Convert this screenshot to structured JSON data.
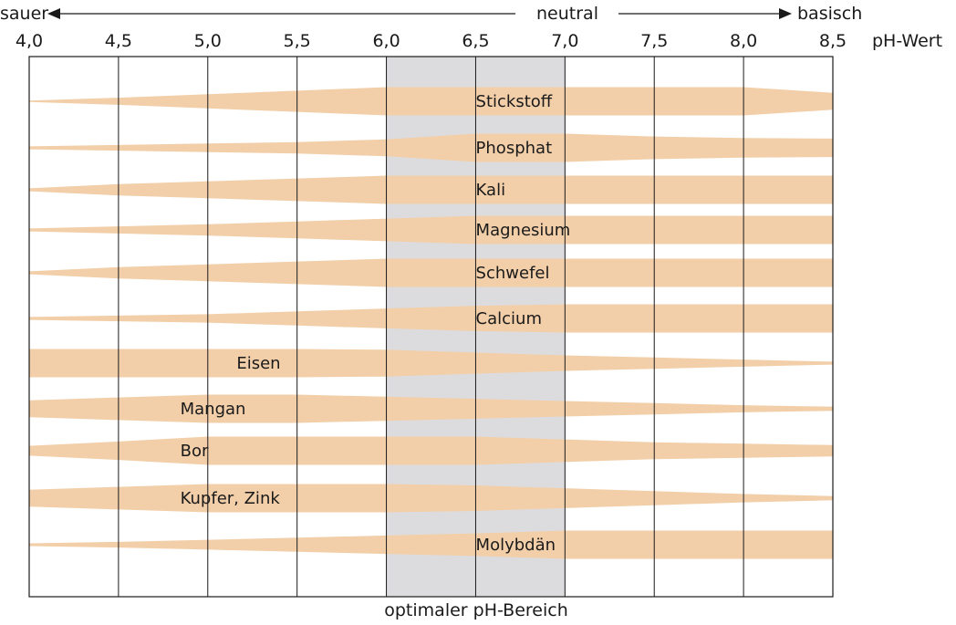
{
  "scale": {
    "left_label": "sauer",
    "center_label": "neutral",
    "right_label": "basisch",
    "unit_label": "pH-Wert",
    "ticks": [
      "4,0",
      "4,5",
      "5,0",
      "5,5",
      "6,0",
      "6,5",
      "7,0",
      "7,5",
      "8,0",
      "8,5"
    ]
  },
  "optimal_label": "optimaler pH-Bereich",
  "colors": {
    "band": "#f2cfa9",
    "optimal_zone": "#dcdcdf",
    "lines": "#1a1a1a"
  },
  "chart_data": {
    "type": "band-diagram",
    "x_axis": {
      "label": "pH-Wert",
      "range": [
        4.0,
        8.5
      ]
    },
    "optimal_range": [
      6.0,
      7.0
    ],
    "nutrients": [
      {
        "name": "Stickstoff",
        "widths": [
          0.05,
          0.25,
          0.5,
          0.75,
          1.0,
          1.0,
          1.0,
          1.0,
          1.0,
          0.6
        ]
      },
      {
        "name": "Phosphat",
        "widths": [
          0.1,
          0.2,
          0.3,
          0.4,
          0.6,
          1.0,
          1.0,
          0.8,
          0.7,
          0.65
        ]
      },
      {
        "name": "Kali",
        "widths": [
          0.1,
          0.4,
          0.6,
          0.8,
          1.0,
          1.0,
          1.0,
          1.0,
          1.0,
          1.0
        ]
      },
      {
        "name": "Magnesium",
        "widths": [
          0.1,
          0.25,
          0.4,
          0.6,
          0.8,
          1.0,
          1.0,
          1.0,
          1.0,
          1.0
        ]
      },
      {
        "name": "Schwefel",
        "widths": [
          0.1,
          0.4,
          0.6,
          0.8,
          1.0,
          1.0,
          1.0,
          1.0,
          1.0,
          1.0
        ]
      },
      {
        "name": "Calcium",
        "widths": [
          0.1,
          0.2,
          0.3,
          0.5,
          0.7,
          0.9,
          1.0,
          1.0,
          1.0,
          1.0
        ]
      },
      {
        "name": "Eisen",
        "widths": [
          1.0,
          1.0,
          1.0,
          1.0,
          0.95,
          0.75,
          0.55,
          0.4,
          0.25,
          0.1
        ]
      },
      {
        "name": "Mangan",
        "widths": [
          0.6,
          0.8,
          1.0,
          1.0,
          0.85,
          0.7,
          0.55,
          0.4,
          0.25,
          0.15
        ]
      },
      {
        "name": "Bor",
        "widths": [
          0.35,
          0.65,
          1.0,
          1.0,
          1.0,
          1.0,
          0.8,
          0.6,
          0.5,
          0.4
        ]
      },
      {
        "name": "Kupfer, Zink",
        "widths": [
          0.6,
          0.8,
          1.0,
          1.0,
          1.0,
          0.9,
          0.7,
          0.5,
          0.3,
          0.15
        ]
      },
      {
        "name": "Molybdän",
        "widths": [
          0.1,
          0.2,
          0.35,
          0.5,
          0.65,
          0.8,
          1.0,
          1.0,
          1.0,
          1.0
        ]
      }
    ]
  }
}
